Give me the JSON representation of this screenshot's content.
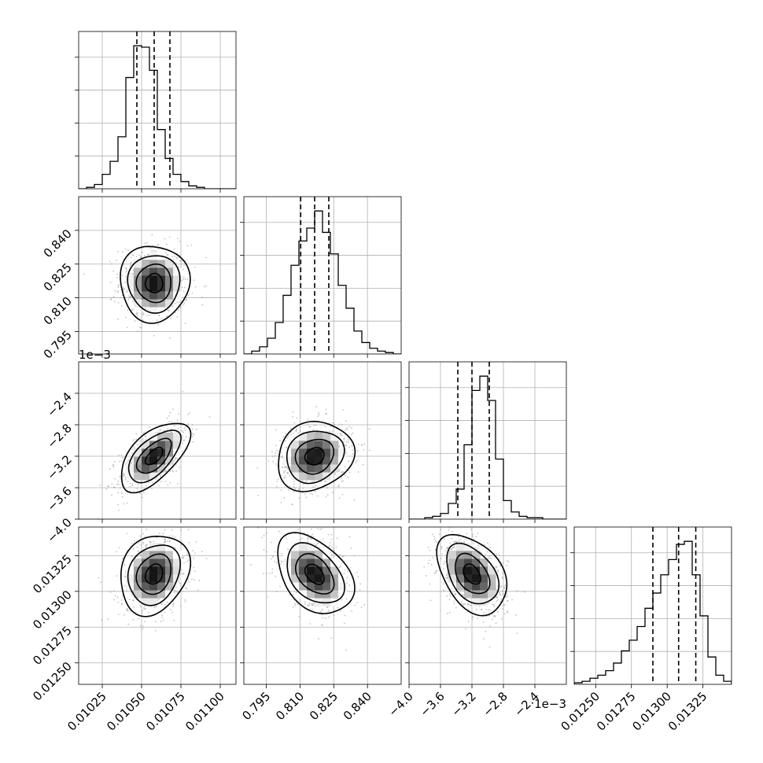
{
  "chart_data": {
    "type": "corner",
    "title": "",
    "grid": true,
    "parameters": [
      {
        "index": 0,
        "label": "",
        "range": [
          0.0101,
          0.0111
        ],
        "ticks": [
          0.01025,
          0.0105,
          0.01075,
          0.011
        ],
        "tick_labels": [
          "0.01025",
          "0.01050",
          "0.01075",
          "0.01100"
        ],
        "offset_text": "",
        "median": 0.01058,
        "quantile_16": 0.01047,
        "quantile_84": 0.01068,
        "hist_edges_start": 0.0101,
        "hist_bin_width": 5e-05,
        "hist_counts": [
          0,
          1,
          3,
          10,
          19,
          36,
          77,
          99,
          98,
          82,
          41,
          21,
          10,
          5,
          2,
          1,
          0,
          0,
          0,
          0
        ]
      },
      {
        "index": 1,
        "label": "",
        "range": [
          0.785,
          0.855
        ],
        "ticks": [
          0.795,
          0.81,
          0.825,
          0.84
        ],
        "tick_labels": [
          "0.795",
          "0.810",
          "0.825",
          "0.840"
        ],
        "offset_text": "",
        "median": 0.8165,
        "quantile_16": 0.8103,
        "quantile_84": 0.8228,
        "hist_edges_start": 0.785,
        "hist_bin_width": 0.0035,
        "hist_counts": [
          0,
          2,
          5,
          11,
          22,
          41,
          62,
          79,
          88,
          100,
          85,
          70,
          48,
          32,
          16,
          8,
          4,
          2,
          1,
          0
        ]
      },
      {
        "index": 2,
        "label": "",
        "range": [
          -4.0,
          -2.0
        ],
        "ticks": [
          -4.0,
          -3.6,
          -3.2,
          -2.8,
          -2.4
        ],
        "tick_labels": [
          "−4.0",
          "−3.6",
          "−3.2",
          "−2.8",
          "−2.4"
        ],
        "offset_text": "1e−3",
        "median": -3.2,
        "quantile_16": -3.38,
        "quantile_84": -2.98,
        "hist_edges_start": -4.0,
        "hist_bin_width": 0.1,
        "hist_counts": [
          0,
          0,
          1,
          2,
          4,
          11,
          21,
          52,
          90,
          100,
          83,
          42,
          13,
          5,
          2,
          1,
          1,
          0,
          0,
          0
        ]
      },
      {
        "index": 3,
        "label": "",
        "range": [
          0.01235,
          0.01345
        ],
        "ticks": [
          0.0125,
          0.01275,
          0.013,
          0.01325
        ],
        "tick_labels": [
          "0.01250",
          "0.01275",
          "0.01300",
          "0.01325"
        ],
        "offset_text": "",
        "median": 0.01308,
        "quantile_16": 0.0129,
        "quantile_84": 0.0132,
        "hist_edges_start": 0.01235,
        "hist_bin_width": 5.5e-05,
        "hist_counts": [
          1,
          2,
          4,
          6,
          9,
          14,
          22,
          29,
          38,
          50,
          60,
          72,
          82,
          92,
          94,
          72,
          45,
          18,
          6,
          2
        ]
      }
    ],
    "pairs": [
      {
        "x": 0,
        "y": 1,
        "mean": [
          0.01058,
          0.8165
        ],
        "sd": [
          0.00011,
          0.0085
        ],
        "corr": 0.0
      },
      {
        "x": 0,
        "y": 2,
        "mean": [
          0.01058,
          -3.2
        ],
        "sd": [
          0.00011,
          0.22
        ],
        "corr": 0.6
      },
      {
        "x": 1,
        "y": 2,
        "mean": [
          0.8165,
          -3.2
        ],
        "sd": [
          0.0085,
          0.22
        ],
        "corr": 0.15
      },
      {
        "x": 0,
        "y": 3,
        "mean": [
          0.01058,
          0.01312
        ],
        "sd": [
          0.00011,
          0.00014
        ],
        "corr": 0.2
      },
      {
        "x": 1,
        "y": 3,
        "mean": [
          0.8165,
          0.01312
        ],
        "sd": [
          0.0085,
          0.00014
        ],
        "corr": -0.4
      },
      {
        "x": 2,
        "y": 3,
        "mean": [
          -3.2,
          0.01312
        ],
        "sd": [
          0.22,
          0.00014
        ],
        "corr": -0.4
      }
    ],
    "contour_levels_sigma": [
      0.5,
      1.0,
      1.5,
      2.0
    ]
  }
}
